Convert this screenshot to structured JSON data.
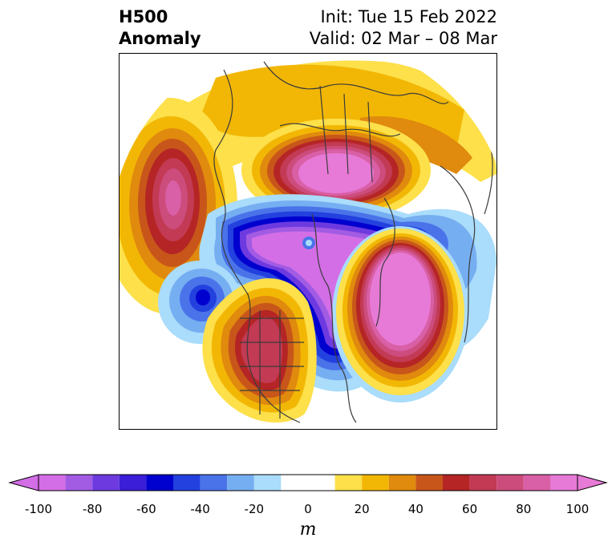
{
  "title": {
    "left_line1": "H500",
    "left_line2": "Anomaly",
    "right_line1": "Init: Tue 15 Feb 2022",
    "right_line2": "Valid: 02 Mar – 08 Mar"
  },
  "colorbar": {
    "units": "m",
    "ticks": [
      "-100",
      "-80",
      "-60",
      "-40",
      "-20",
      "0",
      "20",
      "40",
      "60",
      "80",
      "100"
    ],
    "bins": [
      {
        "from": -100,
        "to": -90,
        "color": "#d36ee6"
      },
      {
        "from": -90,
        "to": -80,
        "color": "#a25be3"
      },
      {
        "from": -80,
        "to": -70,
        "color": "#6d3ae0"
      },
      {
        "from": -70,
        "to": -60,
        "color": "#3a1ed8"
      },
      {
        "from": -60,
        "to": -50,
        "color": "#0000cf"
      },
      {
        "from": -50,
        "to": -40,
        "color": "#2341de"
      },
      {
        "from": -40,
        "to": -30,
        "color": "#4a73ea"
      },
      {
        "from": -30,
        "to": -20,
        "color": "#76aef2"
      },
      {
        "from": -20,
        "to": -10,
        "color": "#aadcfb"
      },
      {
        "from": -10,
        "to": 10,
        "color": "#ffffff"
      },
      {
        "from": 10,
        "to": 20,
        "color": "#fde04a"
      },
      {
        "from": 20,
        "to": 30,
        "color": "#f2b705"
      },
      {
        "from": 30,
        "to": 40,
        "color": "#e08a0e"
      },
      {
        "from": 40,
        "to": 50,
        "color": "#c8561a"
      },
      {
        "from": 50,
        "to": 60,
        "color": "#b52525"
      },
      {
        "from": 60,
        "to": 70,
        "color": "#c23a54"
      },
      {
        "from": 70,
        "to": 80,
        "color": "#cc4c7c"
      },
      {
        "from": 80,
        "to": 90,
        "color": "#d95fa6"
      },
      {
        "from": 90,
        "to": 100,
        "color": "#e77ad6"
      }
    ],
    "extend_low_color": "#d36ee6",
    "extend_high_color": "#e77ad6"
  }
}
